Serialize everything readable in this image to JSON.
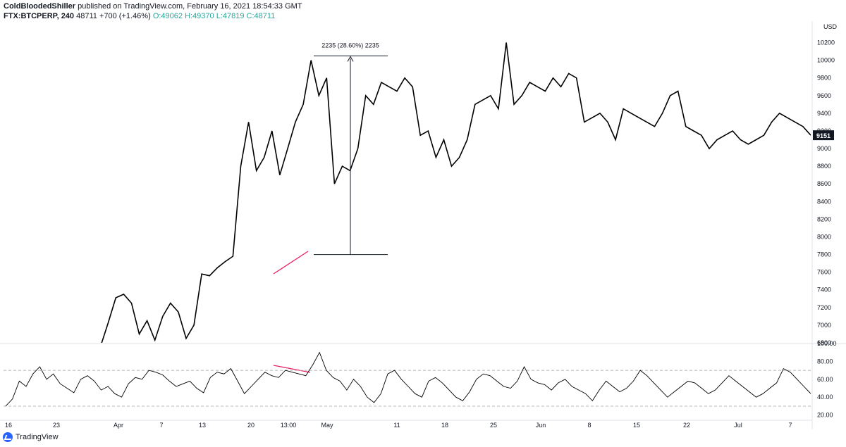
{
  "header": {
    "author": "ColdBloodedShiller",
    "published": "published on TradingView.com, February 16, 2021 18:54:33 GMT"
  },
  "symbol_line": {
    "symbol": "FTX:BTCPERP, 240",
    "last": "48711",
    "change": "+700 (+1.46%)",
    "ohlc": "O:49062 H:49370 L:47819 C:48711"
  },
  "footer": {
    "brand": "TradingView",
    "logo_icon": "tradingview-logo-icon"
  },
  "colors": {
    "price_line": "#000000",
    "rsi_line": "#000000",
    "trendline": "#e91e63",
    "rsi_band": "#b2b5be"
  },
  "chart_data": [
    {
      "type": "line",
      "name": "price",
      "currency_label": "USD",
      "y_ticks": [
        6800,
        7000,
        7200,
        7400,
        7600,
        7800,
        8000,
        8200,
        8400,
        8600,
        8800,
        9000,
        9200,
        9400,
        9600,
        9800,
        10000,
        10200
      ],
      "ylim": [
        6800,
        10300
      ],
      "last_value_badge": "9151",
      "measure_annotation": {
        "label": "2235 (28.60%) 2235",
        "from": 7800,
        "to": 10050
      },
      "points": [
        [
          "16",
          6750
        ],
        [
          "23",
          6780
        ],
        [
          "Apr",
          6750
        ],
        [
          "Apr 3",
          7020
        ],
        [
          "Apr 5",
          7310
        ],
        [
          "Apr 7",
          7350
        ],
        [
          "Apr 9",
          7250
        ],
        [
          "Apr 11",
          6900
        ],
        [
          "13",
          7050
        ],
        [
          "Apr 15",
          6830
        ],
        [
          "Apr 17",
          7100
        ],
        [
          "Apr 18",
          7250
        ],
        [
          "20",
          7150
        ],
        [
          "Apr 21",
          6850
        ],
        [
          "Apr 22",
          7000
        ],
        [
          "Apr 23",
          7580
        ],
        [
          "Apr 24",
          7560
        ],
        [
          "13:00",
          7650
        ],
        [
          "Apr 27",
          7720
        ],
        [
          "Apr 28",
          7780
        ],
        [
          "Apr 29",
          8800
        ],
        [
          "Apr 29b",
          9300
        ],
        [
          "Apr 30",
          8750
        ],
        [
          "May",
          8900
        ],
        [
          "May 2",
          9200
        ],
        [
          "May 3",
          8700
        ],
        [
          "May 4",
          9000
        ],
        [
          "May 5",
          9300
        ],
        [
          "May 6",
          9500
        ],
        [
          "May 7",
          10000
        ],
        [
          "May 8",
          9600
        ],
        [
          "May 9",
          9800
        ],
        [
          "May 10",
          8600
        ],
        [
          "11",
          8800
        ],
        [
          "May 12",
          8750
        ],
        [
          "May 13",
          9000
        ],
        [
          "May 14",
          9600
        ],
        [
          "May 15",
          9500
        ],
        [
          "May 16",
          9750
        ],
        [
          "May 17",
          9700
        ],
        [
          "18",
          9650
        ],
        [
          "May 19",
          9800
        ],
        [
          "May 20",
          9700
        ],
        [
          "May 21",
          9150
        ],
        [
          "May 22",
          9200
        ],
        [
          "May 23",
          8900
        ],
        [
          "May 24",
          9100
        ],
        [
          "25",
          8800
        ],
        [
          "May 26",
          8900
        ],
        [
          "May 27",
          9100
        ],
        [
          "May 28",
          9500
        ],
        [
          "May 29",
          9550
        ],
        [
          "May 30",
          9600
        ],
        [
          "May 31",
          9450
        ],
        [
          "Jun 1",
          10200
        ],
        [
          "Jun",
          9500
        ],
        [
          "Jun 3",
          9600
        ],
        [
          "Jun 4",
          9750
        ],
        [
          "Jun 5",
          9700
        ],
        [
          "Jun 6",
          9650
        ],
        [
          "Jun 7",
          9800
        ],
        [
          "8",
          9700
        ],
        [
          "Jun 9",
          9850
        ],
        [
          "Jun 10",
          9800
        ],
        [
          "Jun 11",
          9300
        ],
        [
          "Jun 12",
          9350
        ],
        [
          "Jun 13",
          9400
        ],
        [
          "Jun 14",
          9300
        ],
        [
          "15",
          9100
        ],
        [
          "Jun 16",
          9450
        ],
        [
          "Jun 17",
          9400
        ],
        [
          "Jun 18",
          9350
        ],
        [
          "Jun 19",
          9300
        ],
        [
          "Jun 20",
          9250
        ],
        [
          "Jun 21",
          9400
        ],
        [
          "22",
          9600
        ],
        [
          "Jun 23",
          9650
        ],
        [
          "Jun 24",
          9250
        ],
        [
          "Jun 25",
          9200
        ],
        [
          "Jun 26",
          9150
        ],
        [
          "Jun 27",
          9000
        ],
        [
          "Jun 28",
          9100
        ],
        [
          "Jun 29",
          9150
        ],
        [
          "Jun 30",
          9200
        ],
        [
          "Jul",
          9100
        ],
        [
          "Jul 2",
          9050
        ],
        [
          "Jul 3",
          9100
        ],
        [
          "Jul 4",
          9150
        ],
        [
          "Jul 5",
          9300
        ],
        [
          "Jul 6",
          9400
        ],
        [
          "7",
          9350
        ],
        [
          "Jul 8",
          9300
        ],
        [
          "Jul 9",
          9250
        ],
        [
          "Jul 10",
          9151
        ]
      ]
    },
    {
      "type": "line",
      "name": "RSI",
      "y_ticks": [
        20,
        40,
        60,
        80,
        100
      ],
      "tick_labels": [
        "20.00",
        "40.00",
        "60.00",
        "80.00",
        "100.00"
      ],
      "bands": [
        30,
        70
      ],
      "ylim": [
        15,
        100
      ],
      "x_tick_labels": [
        "16",
        "23",
        "Apr",
        "7",
        "13",
        "20",
        "13:00",
        "May",
        "11",
        "18",
        "25",
        "Jun",
        "8",
        "15",
        "22",
        "Jul",
        "7"
      ],
      "values": [
        30,
        38,
        58,
        52,
        66,
        74,
        60,
        66,
        55,
        50,
        45,
        60,
        64,
        58,
        48,
        52,
        44,
        40,
        55,
        62,
        60,
        70,
        68,
        65,
        58,
        52,
        55,
        58,
        50,
        45,
        62,
        68,
        66,
        72,
        58,
        44,
        52,
        60,
        68,
        64,
        62,
        70,
        68,
        66,
        64,
        76,
        90,
        70,
        62,
        58,
        48,
        60,
        52,
        40,
        34,
        44,
        66,
        70,
        60,
        52,
        44,
        40,
        58,
        62,
        56,
        48,
        40,
        36,
        46,
        60,
        66,
        64,
        58,
        52,
        50,
        58,
        74,
        60,
        56,
        54,
        48,
        56,
        60,
        52,
        48,
        44,
        36,
        48,
        58,
        52,
        46,
        50,
        58,
        70,
        64,
        56,
        48,
        40,
        46,
        52,
        58,
        56,
        50,
        44,
        48,
        56,
        64,
        58,
        52,
        46,
        40,
        44,
        50,
        56,
        72,
        68,
        60,
        52,
        44
      ]
    }
  ],
  "trendlines": [
    {
      "pane": "price",
      "from": [
        388,
        389
      ],
      "to": [
        437,
        357
      ]
    },
    {
      "pane": "rsi",
      "from": [
        388,
        519
      ],
      "to": [
        440,
        529
      ]
    }
  ]
}
